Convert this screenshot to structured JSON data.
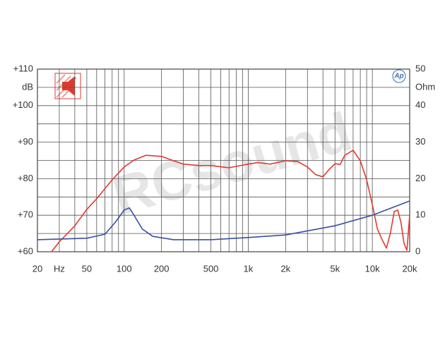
{
  "chart_data": {
    "type": "line",
    "xscale": "log",
    "xlim": [
      20,
      20000
    ],
    "xticks": [
      20,
      {
        "value": 30,
        "label": "Hz"
      },
      50,
      100,
      200,
      500,
      {
        "value": 1000,
        "label": "1k"
      },
      {
        "value": 2000,
        "label": "2k"
      },
      {
        "value": 5000,
        "label": "5k"
      },
      {
        "value": 10000,
        "label": "10k"
      },
      {
        "value": 20000,
        "label": "20k"
      }
    ],
    "xgrid": [
      20,
      30,
      40,
      50,
      60,
      70,
      80,
      90,
      100,
      200,
      300,
      400,
      500,
      600,
      700,
      800,
      900,
      1000,
      2000,
      3000,
      4000,
      5000,
      6000,
      7000,
      8000,
      9000,
      10000,
      20000
    ],
    "ylim": [
      60,
      110
    ],
    "yticks": [
      {
        "value": 60,
        "label": "+60"
      },
      {
        "value": 70,
        "label": "+70"
      },
      {
        "value": 80,
        "label": "+80"
      },
      {
        "value": 90,
        "label": "+90"
      },
      {
        "value": 100,
        "label": "+100"
      },
      {
        "value": 110,
        "label": "+110"
      }
    ],
    "ygrid": [
      60,
      65,
      70,
      75,
      80,
      85,
      90,
      95,
      100,
      105,
      110
    ],
    "ylabel": "dB",
    "y2lim": [
      0,
      50
    ],
    "y2ticks": [
      0,
      10,
      20,
      30,
      40,
      50
    ],
    "y2label": "Ohm",
    "watermark": "RCsound",
    "logo": "Ap",
    "series": [
      {
        "color": "#e03a2e",
        "x": [
          26,
          30,
          40,
          50,
          60,
          80,
          100,
          120,
          150,
          200,
          250,
          300,
          400,
          500,
          700,
          1000,
          1200,
          1500,
          2000,
          2500,
          3000,
          3500,
          4000,
          4500,
          5000,
          5500,
          6000,
          7000,
          8000,
          9000,
          10000,
          11000,
          12000,
          13000,
          14000,
          15000,
          16000,
          17000,
          18000,
          19000,
          20000
        ],
        "values": [
          60,
          62.7,
          67.1,
          71.6,
          74.5,
          79.7,
          83.2,
          85.1,
          86.4,
          86.1,
          84.9,
          84,
          83.6,
          83.6,
          83,
          84,
          84.4,
          84,
          84.9,
          84.7,
          83.2,
          81.1,
          80.5,
          82.6,
          84.1,
          83.9,
          86.4,
          87.8,
          84.9,
          79.7,
          72.9,
          66.2,
          63.3,
          61,
          65.2,
          71,
          71.4,
          68.1,
          62.3,
          60.4,
          70
        ]
      },
      {
        "color": "#3a4fa0",
        "axis": "y2",
        "x": [
          20,
          50,
          70,
          85,
          100,
          110,
          120,
          140,
          170,
          250,
          500,
          1000,
          2000,
          5000,
          10000,
          20000
        ],
        "values": [
          3.3,
          3.7,
          4.8,
          8.1,
          11.4,
          12,
          10,
          6.2,
          4.2,
          3.3,
          3.3,
          3.9,
          4.6,
          7.1,
          10,
          13.9
        ]
      }
    ]
  }
}
